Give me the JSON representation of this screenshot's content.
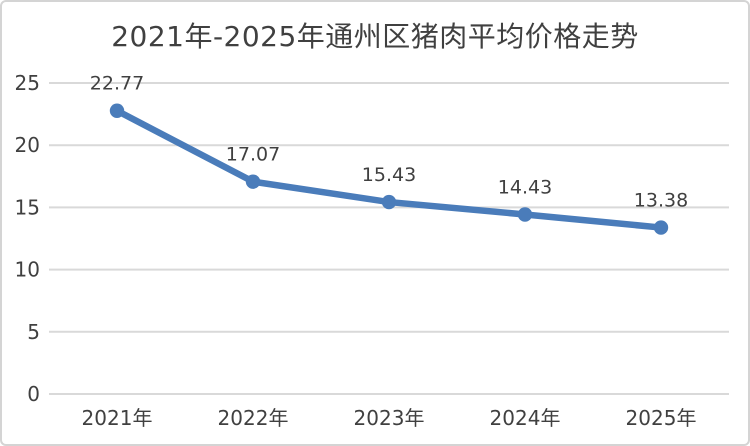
{
  "chart": {
    "title": "2021年-2025年通州区猪肉平均价格走势"
  },
  "chart_data": {
    "type": "line",
    "title": "2021年-2025年通州区猪肉平均价格走势",
    "categories": [
      "2021年",
      "2022年",
      "2023年",
      "2024年",
      "2025年"
    ],
    "values": [
      22.77,
      17.07,
      15.43,
      14.43,
      13.38
    ],
    "data_labels": [
      "22.77",
      "17.07",
      "15.43",
      "14.43",
      "13.38"
    ],
    "y_ticks": [
      0,
      5,
      10,
      15,
      20,
      25
    ],
    "ylim": [
      0,
      25
    ],
    "xlabel": "",
    "ylabel": "",
    "grid": true,
    "legend_position": "none",
    "marker": "circle",
    "line_color": "#4A7CBA",
    "marker_color": "#4A7CBA",
    "grid_color": "#D9D9D9",
    "text_color": "#404040"
  }
}
